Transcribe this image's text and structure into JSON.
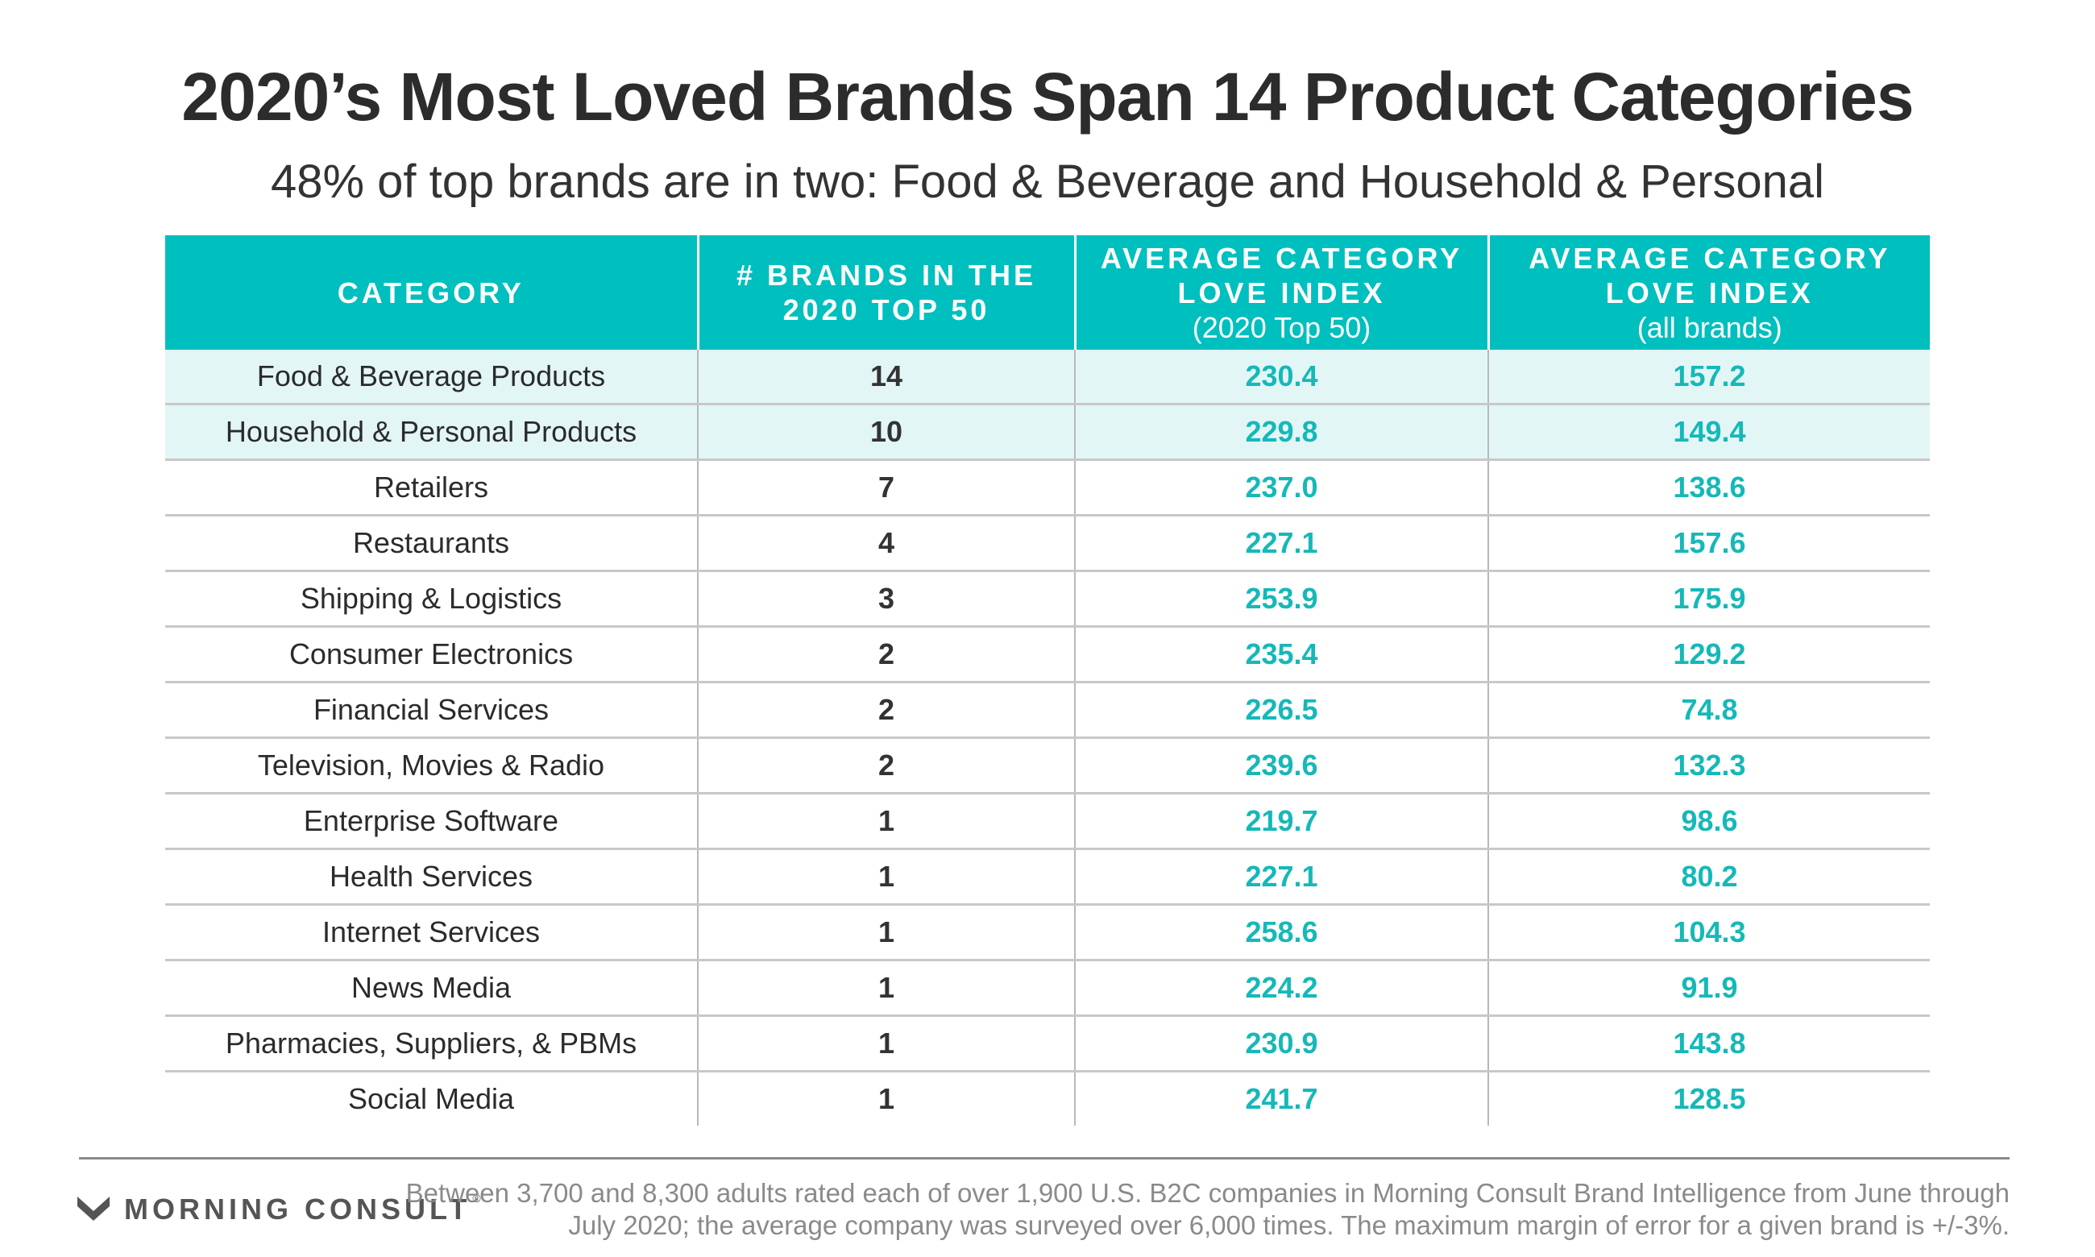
{
  "title": "2020’s Most Loved Brands Span 14 Product Categories",
  "subtitle": "48% of top brands are in two: Food & Beverage and Household & Personal",
  "colors": {
    "header_bg": "#00bfbf",
    "highlight_row": "#e3f6f6",
    "teal_text": "#16b8b8"
  },
  "chart_data": {
    "type": "table",
    "columns": [
      {
        "label": "CATEGORY",
        "sub": ""
      },
      {
        "label": "# BRANDS IN THE 2020 TOP 50",
        "sub": ""
      },
      {
        "label": "AVERAGE CATEGORY LOVE INDEX",
        "sub": "(2020 Top 50)"
      },
      {
        "label": "AVERAGE CATEGORY LOVE INDEX",
        "sub": "(all brands)"
      }
    ],
    "rows": [
      {
        "category": "Food & Beverage Products",
        "brands": "14",
        "index_top50": "230.4",
        "index_all": "157.2",
        "highlight": true
      },
      {
        "category": "Household & Personal Products",
        "brands": "10",
        "index_top50": "229.8",
        "index_all": "149.4",
        "highlight": true
      },
      {
        "category": "Retailers",
        "brands": "7",
        "index_top50": "237.0",
        "index_all": "138.6",
        "highlight": false
      },
      {
        "category": "Restaurants",
        "brands": "4",
        "index_top50": "227.1",
        "index_all": "157.6",
        "highlight": false
      },
      {
        "category": "Shipping & Logistics",
        "brands": "3",
        "index_top50": "253.9",
        "index_all": "175.9",
        "highlight": false
      },
      {
        "category": "Consumer Electronics",
        "brands": "2",
        "index_top50": "235.4",
        "index_all": "129.2",
        "highlight": false
      },
      {
        "category": "Financial Services",
        "brands": "2",
        "index_top50": "226.5",
        "index_all": "74.8",
        "highlight": false
      },
      {
        "category": "Television, Movies & Radio",
        "brands": "2",
        "index_top50": "239.6",
        "index_all": "132.3",
        "highlight": false
      },
      {
        "category": "Enterprise Software",
        "brands": "1",
        "index_top50": "219.7",
        "index_all": "98.6",
        "highlight": false
      },
      {
        "category": "Health Services",
        "brands": "1",
        "index_top50": "227.1",
        "index_all": "80.2",
        "highlight": false
      },
      {
        "category": "Internet Services",
        "brands": "1",
        "index_top50": "258.6",
        "index_all": "104.3",
        "highlight": false
      },
      {
        "category": "News Media",
        "brands": "1",
        "index_top50": "224.2",
        "index_all": "91.9",
        "highlight": false
      },
      {
        "category": "Pharmacies, Suppliers, & PBMs",
        "brands": "1",
        "index_top50": "230.9",
        "index_all": "143.8",
        "highlight": false
      },
      {
        "category": "Social Media",
        "brands": "1",
        "index_top50": "241.7",
        "index_all": "128.5",
        "highlight": false
      }
    ]
  },
  "footer": {
    "logo_text": "MORNING CONSULT",
    "logo_mark": "®",
    "logo_icon": "morning-consult-chevron-icon",
    "note": "Between 3,700 and 8,300 adults rated each of over 1,900 U.S. B2C companies in Morning Consult Brand Intelligence from June through July 2020; the average company was surveyed over 6,000 times. The maximum margin of error for a given brand is +/-3%."
  }
}
